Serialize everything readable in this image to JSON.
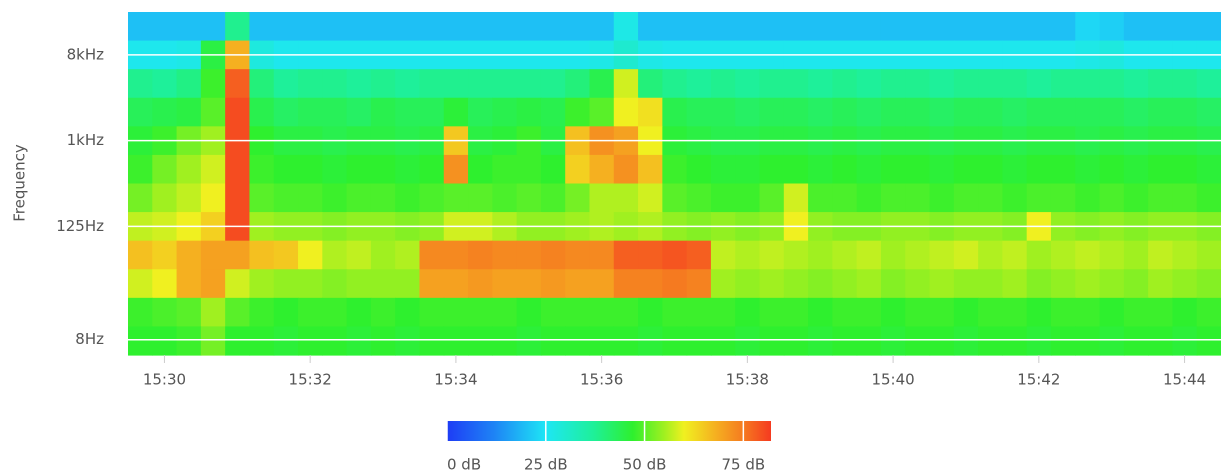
{
  "chart_data": {
    "type": "heatmap",
    "y_label": "Frequency",
    "log_y": true,
    "x": [
      55770,
      55790,
      55810,
      55830,
      55850,
      55870,
      55890,
      55910,
      55930,
      55950,
      55970,
      55990,
      56010,
      56030,
      56050,
      56070,
      56090,
      56110,
      56130,
      56150,
      56170,
      56190,
      56210,
      56230,
      56250,
      56270,
      56290,
      56310,
      56330,
      56350,
      56370,
      56390,
      56410,
      56430,
      56450,
      56470,
      56490,
      56510,
      56530,
      56550,
      56570,
      56590,
      56610,
      56630,
      56650
    ],
    "xlim": [
      55770,
      56670
    ],
    "xticks": [
      {
        "value": 55800,
        "label": "15:30"
      },
      {
        "value": 55920,
        "label": "15:32"
      },
      {
        "value": 56040,
        "label": "15:34"
      },
      {
        "value": 56160,
        "label": "15:36"
      },
      {
        "value": 56280,
        "label": "15:38"
      },
      {
        "value": 56400,
        "label": "15:40"
      },
      {
        "value": 56520,
        "label": "15:42"
      },
      {
        "value": 56640,
        "label": "15:44"
      }
    ],
    "y": [
      16000,
      8000,
      4000,
      2000,
      1000,
      500,
      250,
      125,
      62.5,
      31.25,
      15.625,
      7.8125
    ],
    "ylim": [
      5.524,
      22627
    ],
    "yticks": [
      {
        "value": 8000,
        "label": "8kHz"
      },
      {
        "value": 1000,
        "label": "1kHz"
      },
      {
        "value": 125,
        "label": "125Hz"
      },
      {
        "value": 8,
        "label": "8Hz"
      }
    ],
    "grid": true,
    "grid_color": "#ffffff",
    "z": [
      [
        20,
        20,
        20,
        20,
        38,
        20,
        20,
        20,
        20,
        20,
        20,
        20,
        20,
        20,
        20,
        20,
        20,
        20,
        20,
        20,
        27,
        20,
        20,
        20,
        20,
        20,
        20,
        20,
        20,
        20,
        20,
        20,
        20,
        20,
        20,
        20,
        20,
        20,
        20,
        23,
        22,
        20,
        20,
        20,
        20
      ],
      [
        26,
        26,
        27,
        45,
        68,
        28,
        26,
        26,
        26,
        26,
        26,
        26,
        26,
        26,
        26,
        26,
        26,
        26,
        26,
        27,
        30,
        27,
        26,
        26,
        26,
        26,
        26,
        26,
        26,
        26,
        26,
        26,
        26,
        26,
        26,
        26,
        26,
        26,
        26,
        27,
        28,
        26,
        26,
        26,
        26
      ],
      [
        38,
        37,
        39,
        48,
        78,
        40,
        37,
        38,
        38,
        37,
        38,
        37,
        38,
        38,
        38,
        38,
        38,
        38,
        40,
        44,
        58,
        40,
        38,
        37,
        38,
        37,
        38,
        38,
        37,
        38,
        37,
        38,
        38,
        37,
        38,
        38,
        38,
        37,
        38,
        38,
        38,
        37,
        38,
        38,
        37
      ],
      [
        43,
        44,
        45,
        50,
        80,
        44,
        42,
        43,
        43,
        42,
        44,
        43,
        43,
        46,
        43,
        44,
        45,
        44,
        48,
        50,
        60,
        62,
        44,
        43,
        43,
        42,
        43,
        43,
        42,
        43,
        42,
        43,
        43,
        42,
        43,
        43,
        42,
        43,
        43,
        43,
        43,
        42,
        43,
        43,
        42
      ],
      [
        46,
        48,
        52,
        55,
        80,
        47,
        45,
        45,
        44,
        45,
        45,
        44,
        45,
        65,
        45,
        46,
        48,
        45,
        66,
        72,
        70,
        60,
        46,
        45,
        44,
        44,
        45,
        45,
        44,
        45,
        44,
        45,
        45,
        44,
        45,
        45,
        44,
        45,
        45,
        44,
        45,
        44,
        45,
        45,
        44
      ],
      [
        48,
        52,
        55,
        58,
        80,
        48,
        47,
        47,
        46,
        47,
        47,
        46,
        47,
        72,
        47,
        48,
        48,
        47,
        64,
        68,
        72,
        66,
        48,
        47,
        46,
        46,
        47,
        47,
        46,
        47,
        46,
        47,
        47,
        46,
        47,
        47,
        46,
        47,
        47,
        46,
        47,
        46,
        47,
        47,
        46
      ],
      [
        52,
        55,
        57,
        60,
        80,
        50,
        49,
        49,
        48,
        49,
        49,
        48,
        49,
        50,
        50,
        49,
        50,
        49,
        52,
        56,
        56,
        58,
        50,
        49,
        48,
        48,
        50,
        58,
        49,
        49,
        48,
        49,
        49,
        48,
        49,
        49,
        48,
        49,
        49,
        48,
        49,
        48,
        49,
        49,
        48
      ],
      [
        57,
        58,
        60,
        64,
        80,
        55,
        54,
        54,
        53,
        54,
        54,
        53,
        54,
        58,
        58,
        56,
        54,
        54,
        55,
        56,
        55,
        56,
        54,
        53,
        54,
        53,
        54,
        60,
        54,
        53,
        53,
        54,
        54,
        53,
        54,
        54,
        53,
        60,
        54,
        53,
        54,
        53,
        54,
        54,
        53
      ],
      [
        66,
        64,
        68,
        70,
        70,
        66,
        65,
        60,
        56,
        57,
        55,
        56,
        73,
        73,
        74,
        73,
        73,
        74,
        73,
        73,
        78,
        78,
        79,
        78,
        57,
        56,
        57,
        56,
        55,
        56,
        57,
        55,
        56,
        57,
        58,
        56,
        57,
        55,
        56,
        57,
        56,
        55,
        57,
        56,
        55
      ],
      [
        58,
        60,
        68,
        70,
        58,
        55,
        54,
        54,
        53,
        54,
        54,
        54,
        70,
        70,
        71,
        70,
        70,
        71,
        70,
        70,
        74,
        74,
        75,
        74,
        55,
        54,
        55,
        54,
        53,
        54,
        55,
        53,
        54,
        55,
        54,
        54,
        55,
        53,
        54,
        55,
        54,
        53,
        55,
        54,
        53
      ],
      [
        48,
        49,
        50,
        55,
        50,
        48,
        47,
        48,
        48,
        47,
        48,
        47,
        48,
        48,
        48,
        48,
        47,
        48,
        48,
        48,
        48,
        47,
        48,
        48,
        48,
        47,
        48,
        48,
        47,
        48,
        48,
        47,
        48,
        48,
        47,
        48,
        48,
        47,
        48,
        48,
        47,
        48,
        48,
        47,
        48
      ],
      [
        47,
        47,
        48,
        52,
        47,
        47,
        46,
        47,
        47,
        46,
        47,
        46,
        47,
        47,
        47,
        47,
        46,
        47,
        47,
        47,
        47,
        46,
        47,
        47,
        47,
        46,
        47,
        47,
        46,
        47,
        47,
        46,
        47,
        47,
        46,
        47,
        47,
        46,
        47,
        47,
        46,
        47,
        47,
        46,
        47
      ]
    ],
    "colorbar": {
      "lim": [
        0,
        82
      ],
      "ticks": [
        {
          "value": 0,
          "label": "0 dB"
        },
        {
          "value": 25,
          "label": "25 dB"
        },
        {
          "value": 50,
          "label": "50 dB"
        },
        {
          "value": 75,
          "label": "75 dB"
        }
      ],
      "colorscale": [
        [
          0,
          "#1e3cf5"
        ],
        [
          12,
          "#1e84f5"
        ],
        [
          25,
          "#1ee6f5"
        ],
        [
          37,
          "#1ef09a"
        ],
        [
          47,
          "#2ef02e"
        ],
        [
          55,
          "#a0f020"
        ],
        [
          60,
          "#f0f020"
        ],
        [
          68,
          "#f5b020"
        ],
        [
          75,
          "#f57a20"
        ],
        [
          82,
          "#f53a20"
        ]
      ]
    }
  }
}
